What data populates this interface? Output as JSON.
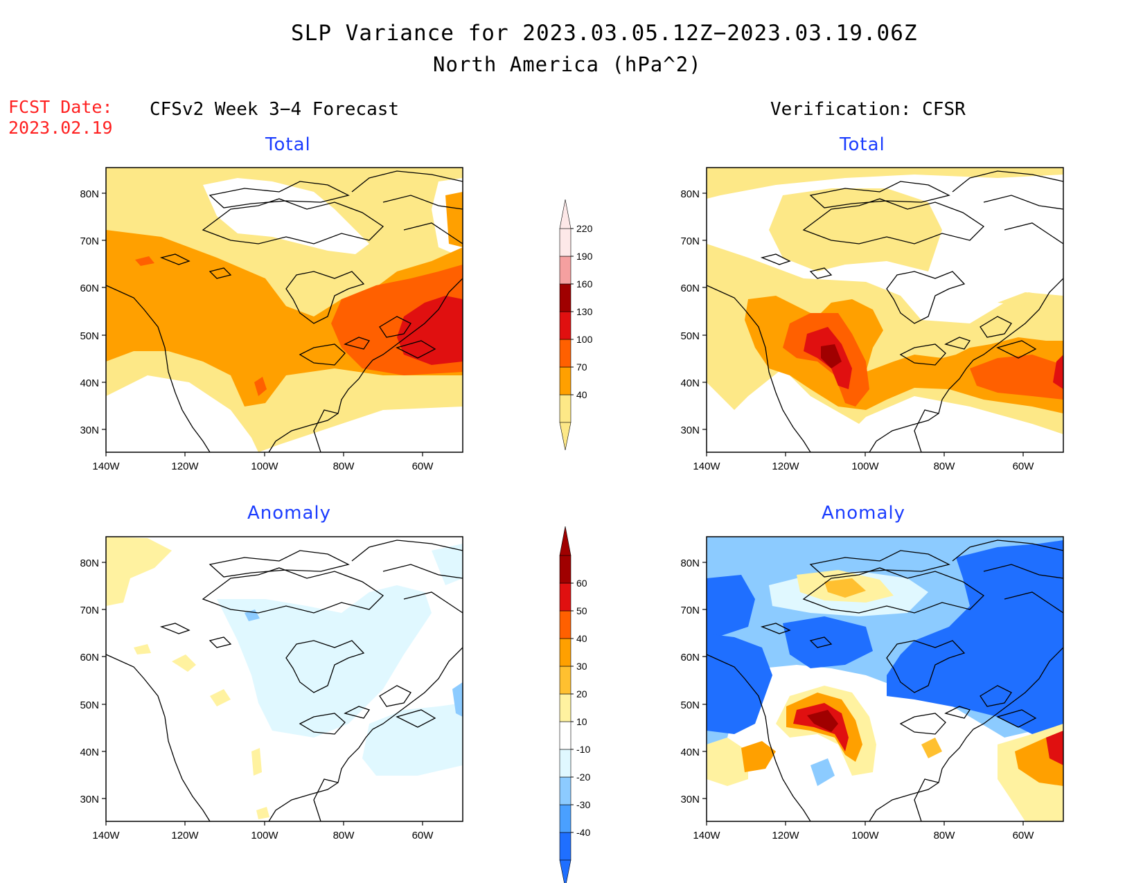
{
  "header": {
    "title_line1": "SLP Variance for 2023.03.05.12Z−2023.03.19.06Z",
    "title_line2": "North America (hPa^2)"
  },
  "fcst_date": {
    "label": "FCST Date:",
    "value": "2023.02.19"
  },
  "columns": {
    "left": "CFSv2 Week 3−4 Forecast",
    "right": "Verification: CFSR"
  },
  "panels": {
    "fcst_total": "Total",
    "fcst_anomaly": "Anomaly",
    "verif_total": "Total",
    "verif_anomaly": "Anomaly"
  },
  "axes": {
    "lat_ticks": [
      "80N",
      "70N",
      "60N",
      "50N",
      "40N",
      "30N"
    ],
    "lon_ticks": [
      "140W",
      "120W",
      "100W",
      "80W",
      "60W"
    ]
  },
  "total_colorbar": {
    "colors": [
      "#fde887",
      "#ffa000",
      "#ff6000",
      "#e01010",
      "#a00000",
      "#f5a0a0",
      "#fde8e8"
    ],
    "labels": [
      "40",
      "70",
      "100",
      "130",
      "160",
      "190",
      "220"
    ]
  },
  "anomaly_colorbar": {
    "colors": [
      "#1f6fff",
      "#4aa0ff",
      "#8ccbff",
      "#e0f8ff",
      "#ffffff",
      "#fff2a0",
      "#ffc030",
      "#ffa000",
      "#ff6000",
      "#e01010",
      "#a00000"
    ],
    "labels": [
      "-40",
      "-30",
      "-20",
      "-10",
      "10",
      "20",
      "30",
      "40",
      "50",
      "60"
    ]
  },
  "colors": {
    "title_blue": "#1a3cff",
    "fcst_red": "#ff2020"
  }
}
